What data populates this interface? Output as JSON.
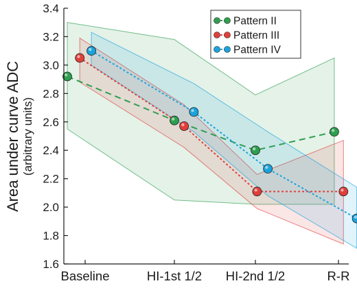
{
  "chart_data": {
    "type": "line",
    "categories": [
      "Baseline",
      "HI-1st 1/2",
      "HI-2nd 1/2",
      "R-R"
    ],
    "ylabel": "Area under curve ADC",
    "ylabel_sub": "(arbitrary units)",
    "ylim": [
      1.6,
      3.4
    ],
    "yticks": [
      "1.6",
      "1.8",
      "2.0",
      "2.2",
      "2.4",
      "2.6",
      "2.8",
      "3.0",
      "3.2",
      "3.4"
    ],
    "grid": false,
    "legend_position": "top-right",
    "series": [
      {
        "name": "Pattern II",
        "color": "#2e9e4f",
        "x": [
          -0.2,
          1.0,
          2.0,
          2.95
        ],
        "values": [
          2.92,
          2.61,
          2.4,
          2.53
        ],
        "band_upper": [
          3.3,
          3.18,
          2.79,
          3.05
        ],
        "band_lower": [
          2.55,
          2.05,
          2.02,
          2.02
        ]
      },
      {
        "name": "Pattern III",
        "color": "#e0403a",
        "x": [
          -0.06,
          1.12,
          2.02,
          3.06
        ],
        "values": [
          3.05,
          2.57,
          2.11,
          2.11
        ],
        "band_upper": [
          3.19,
          2.72,
          2.23,
          2.47
        ],
        "band_lower": [
          2.88,
          2.42,
          1.99,
          1.74
        ]
      },
      {
        "name": "Pattern IV",
        "color": "#1aa3dd",
        "x": [
          0.07,
          1.24,
          2.15,
          3.22
        ],
        "values": [
          3.1,
          2.67,
          2.27,
          1.92
        ],
        "band_upper": [
          3.23,
          2.87,
          2.53,
          2.14
        ],
        "band_lower": [
          3.0,
          2.53,
          2.08,
          1.71
        ]
      }
    ]
  }
}
